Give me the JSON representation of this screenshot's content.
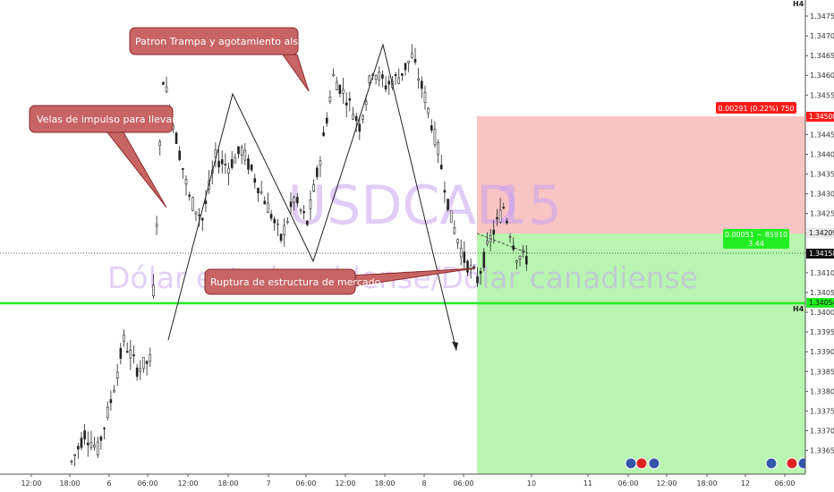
{
  "chart": {
    "symbol": "USDCAD",
    "resolution": "15",
    "description": "Dólar estadounidense/Dólar canadiense",
    "timeframe_top": "H4",
    "timeframe_mid": "H4"
  },
  "price_scale": {
    "ticks": [
      "1.34750",
      "1.34700",
      "1.34650",
      "1.34600",
      "1.34550",
      "1.34500",
      "1.34450",
      "1.34400",
      "1.34350",
      "1.34300",
      "1.34250",
      "1.34200",
      "1.34150",
      "1.34100",
      "1.34050",
      "1.34000",
      "1.33950",
      "1.33900",
      "1.33850",
      "1.33800",
      "1.33750",
      "1.33700",
      "1.33650"
    ],
    "labels": {
      "stop": {
        "text": "1.34500",
        "color": "#ff1a1a"
      },
      "target_line": {
        "text": "1.34054",
        "color": "#22ee22"
      },
      "last": {
        "text": "1.34158",
        "color": "#111111"
      },
      "entry": {
        "text": "1.34209",
        "color": "#e8e8e8"
      }
    }
  },
  "time_scale": {
    "ticks": [
      "12:00",
      "18:00",
      "6",
      "06:00",
      "12:00",
      "18:00",
      "7",
      "06:00",
      "12:00",
      "18:00",
      "8",
      "06:00",
      "10",
      "11",
      "06:00",
      "12:00",
      "18:00",
      "12",
      "06:00"
    ]
  },
  "position": {
    "stop_info": "0.00291 (0.22%) 750",
    "entry_info_1": "0.00051 ~ 85910",
    "entry_info_2": "3.44",
    "stop_zone_color": "#f9c4c4",
    "target_zone_color": "#b8f5b0"
  },
  "annotations": {
    "callout_1": "Velas de impulso para llevarse SL",
    "callout_2": "Patron Trampa y agotamiento alsista",
    "callout_3": "Ruptura de estructura de mercado",
    "callout_color": "#c86464"
  },
  "events": [
    {
      "name": "flag-us-icon"
    },
    {
      "name": "flag-ca-icon"
    },
    {
      "name": "flag-us-icon"
    },
    {
      "name": "flag-us-icon"
    },
    {
      "name": "flag-ca-icon"
    },
    {
      "name": "flag-us-icon"
    }
  ],
  "chart_data": {
    "type": "line",
    "title": "USDCAD, 15",
    "xlabel": "",
    "ylabel": "",
    "ylim": [
      1.3362,
      1.3479
    ],
    "series": [
      {
        "name": "USDCAD",
        "x": [
          0,
          4,
          8,
          12,
          16,
          20,
          24,
          28,
          32,
          36,
          40,
          44,
          48,
          52,
          56,
          60,
          64,
          68,
          72,
          76,
          80,
          84,
          88,
          92,
          96,
          100,
          104,
          108,
          112,
          116,
          120,
          124,
          128,
          132,
          136,
          140
        ],
        "values": [
          1.3365,
          1.3372,
          1.3368,
          1.338,
          1.3395,
          1.3388,
          1.339,
          1.346,
          1.3445,
          1.343,
          1.3425,
          1.344,
          1.3438,
          1.3442,
          1.3435,
          1.3428,
          1.342,
          1.343,
          1.3424,
          1.344,
          1.346,
          1.3455,
          1.3448,
          1.3462,
          1.3458,
          1.346,
          1.3465,
          1.3455,
          1.3442,
          1.3425,
          1.3415,
          1.341,
          1.342,
          1.3428,
          1.3416,
          1.3415
        ]
      }
    ],
    "levels": {
      "stop": 1.345,
      "entry": 1.34209,
      "last": 1.34158,
      "horizontal_line": 1.34054
    },
    "grid": false,
    "legend": "none"
  }
}
